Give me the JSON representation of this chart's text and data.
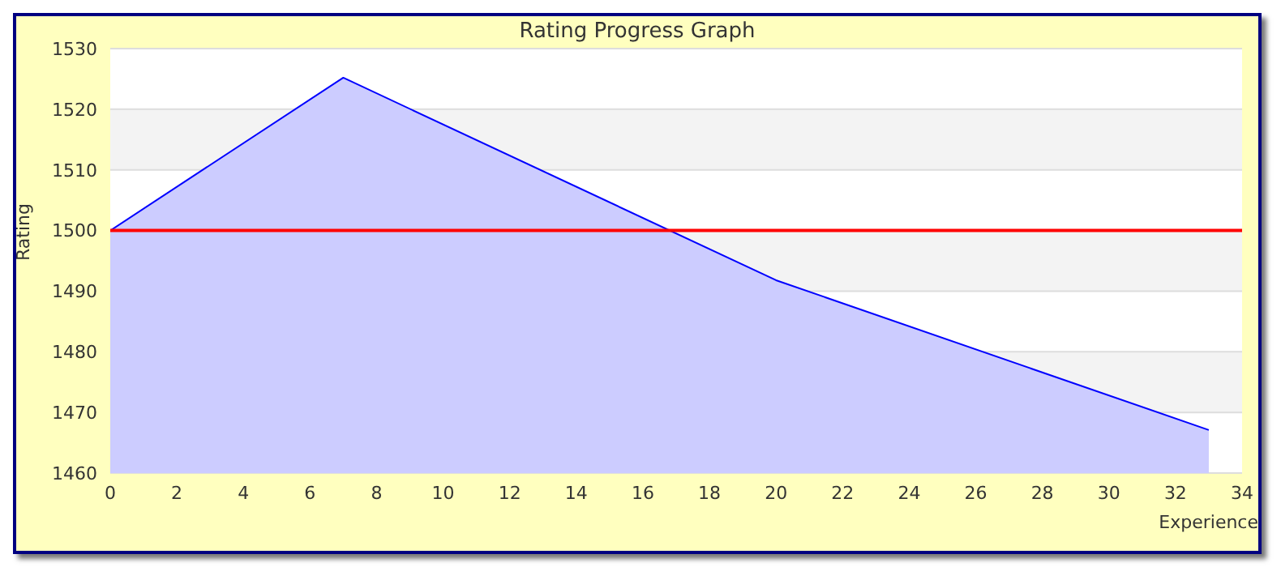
{
  "chart_data": {
    "type": "area",
    "title": "Rating Progress Graph",
    "xlabel": "Experience",
    "ylabel": "Rating",
    "x": [
      0,
      7,
      20,
      33
    ],
    "series": [
      {
        "color": "#0000ff",
        "values": [
          1500,
          1525.2,
          1491.8,
          1467.1
        ]
      }
    ],
    "xlim": [
      0,
      34
    ],
    "xticks": [
      0,
      2,
      4,
      6,
      8,
      10,
      12,
      14,
      16,
      18,
      20,
      22,
      24,
      26,
      28,
      30,
      32,
      34
    ],
    "ylim": [
      1460,
      1530
    ],
    "yticks": [
      1460,
      1470,
      1480,
      1490,
      1500,
      1510,
      1520,
      1530
    ],
    "grid": "y",
    "legend": false,
    "marker": "none",
    "line_style": "solid",
    "ref_lines": [
      {
        "axis": "y",
        "value": 1500,
        "color": "#ff0000"
      }
    ]
  }
}
